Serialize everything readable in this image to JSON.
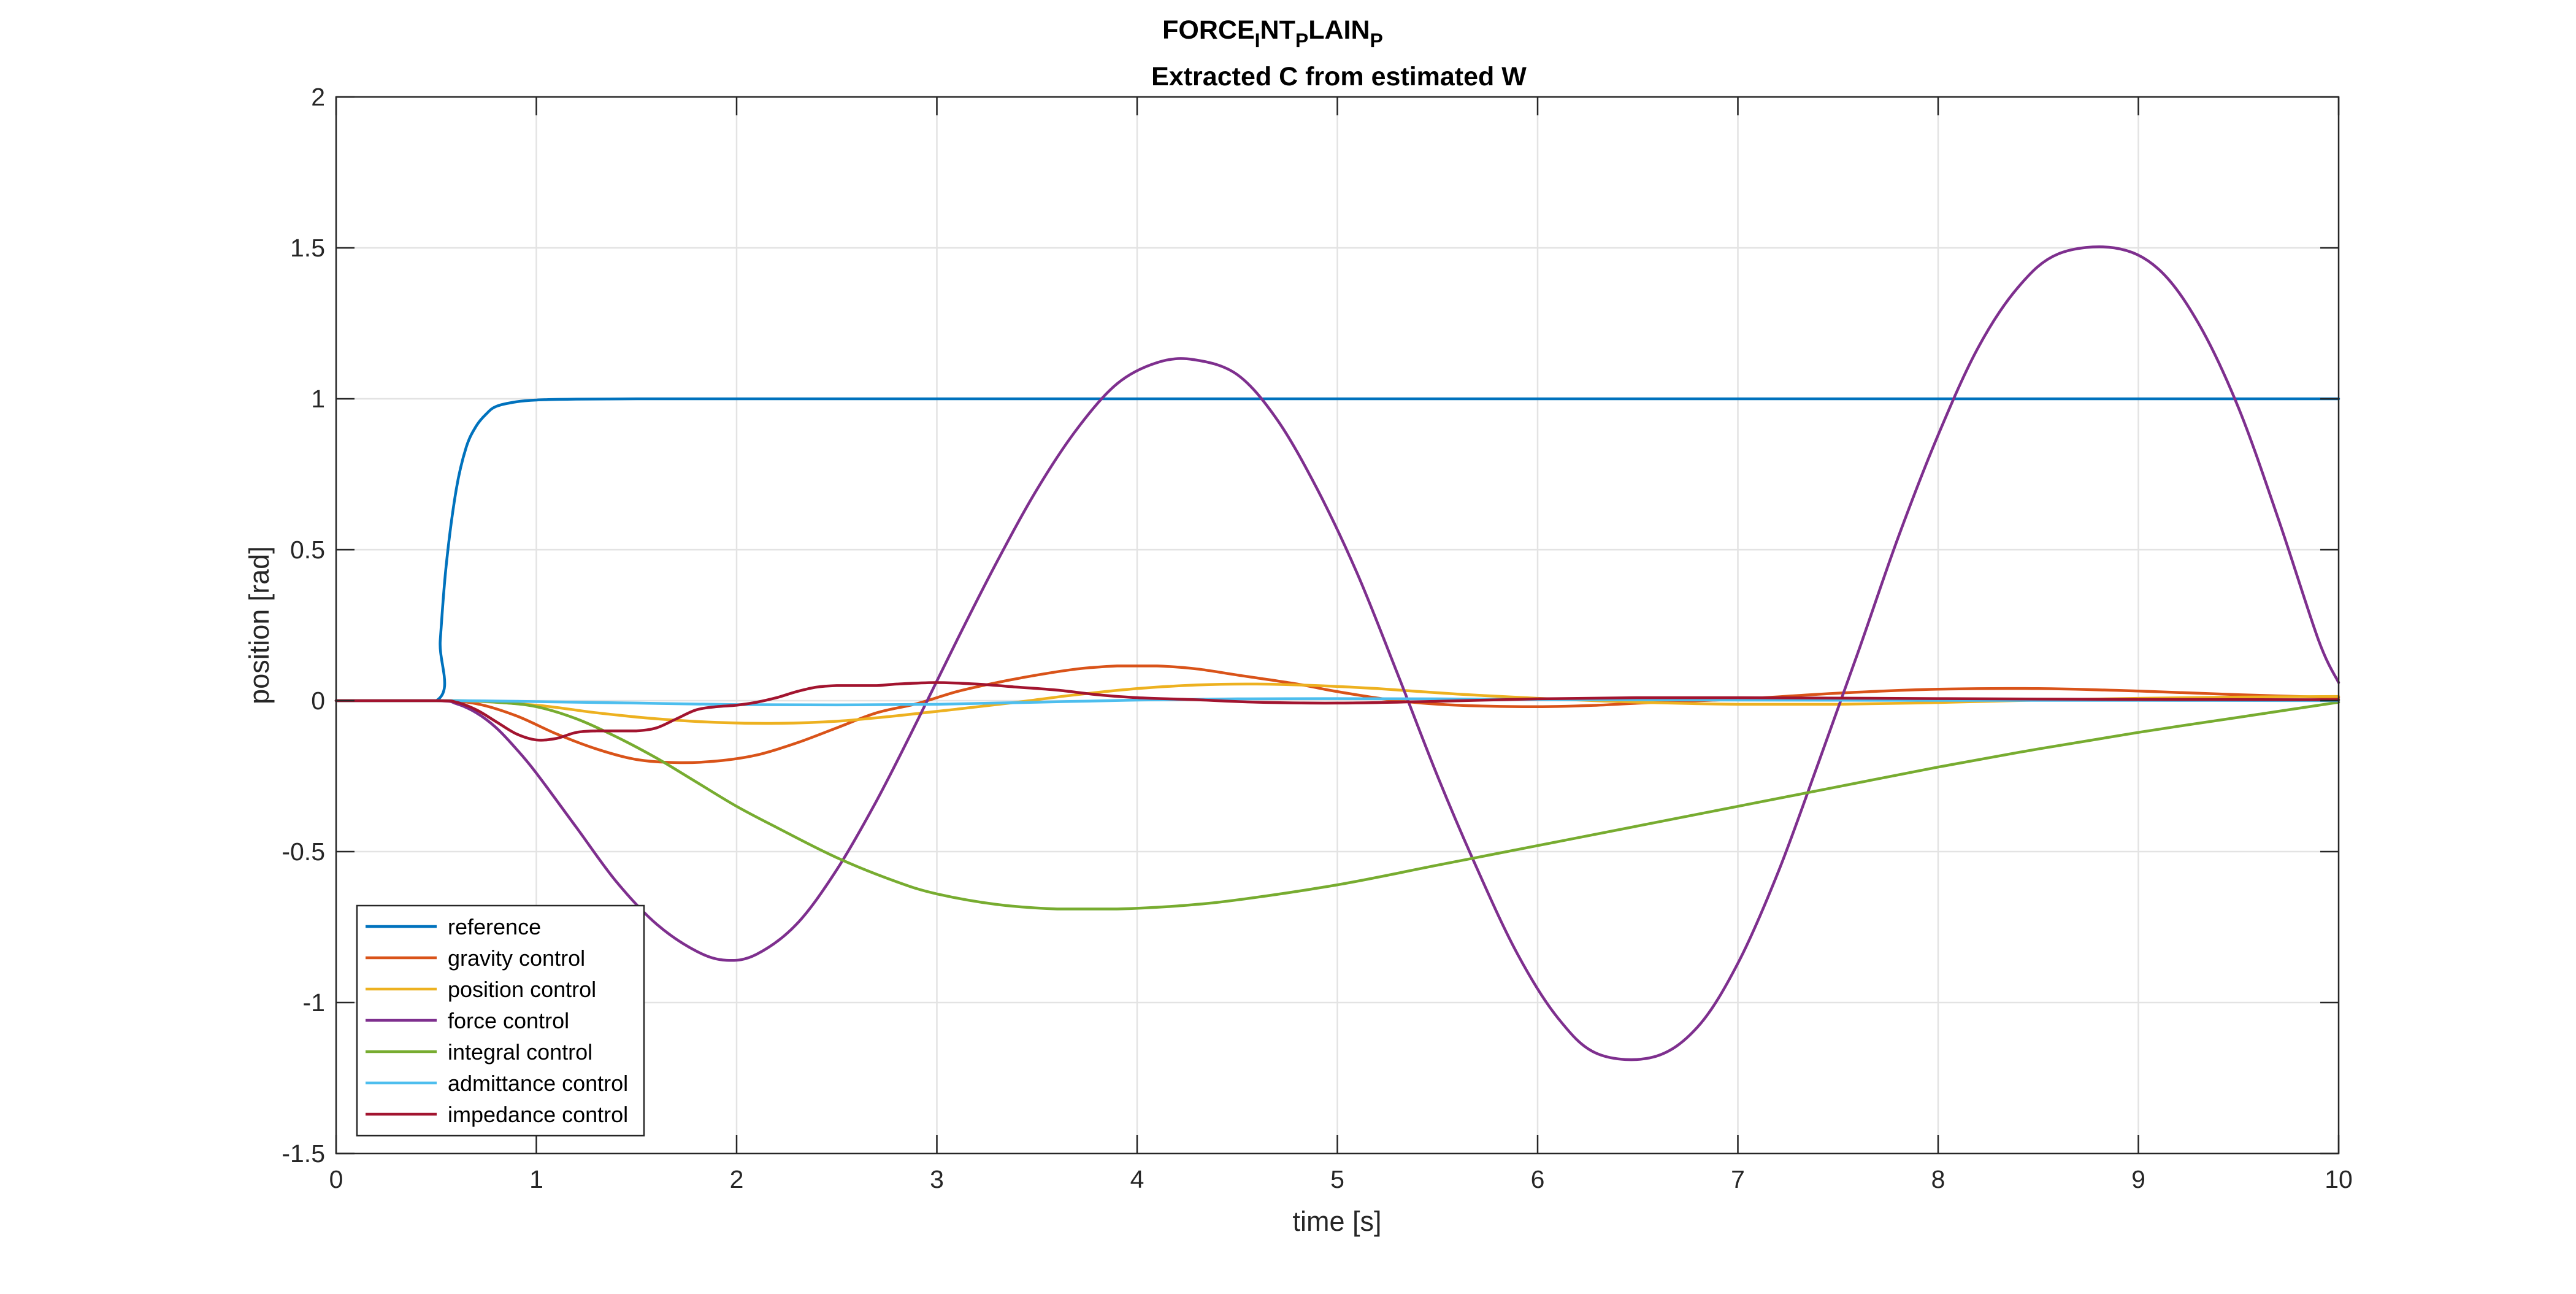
{
  "chart_data": {
    "type": "line",
    "title": {
      "part1": "FORCE",
      "sub1": "I",
      "part2": "NT",
      "sub2": "P",
      "part3": "LAIN",
      "sub3": "P"
    },
    "subtitle": "Extracted C from estimated W",
    "xlabel": "time [s]",
    "ylabel": "position [rad]",
    "xlim": [
      0,
      10
    ],
    "ylim": [
      -1.5,
      2
    ],
    "xticks": [
      0,
      1,
      2,
      3,
      4,
      5,
      6,
      7,
      8,
      9,
      10
    ],
    "xtick_labels": [
      "0",
      "1",
      "2",
      "3",
      "4",
      "5",
      "6",
      "7",
      "8",
      "9",
      "10"
    ],
    "yticks": [
      -1.5,
      -1,
      -0.5,
      0,
      0.5,
      1,
      1.5,
      2
    ],
    "ytick_labels": [
      "-1.5",
      "-1",
      "-0.5",
      "0",
      "0.5",
      "1",
      "1.5",
      "2"
    ],
    "grid": true,
    "legend_position": "bottom-left",
    "series": [
      {
        "name": "reference",
        "color": "#0072BD",
        "x": [
          0,
          0.5,
          0.52,
          0.55,
          0.6,
          0.65,
          0.7,
          0.75,
          0.8,
          0.9,
          1.0,
          1.2,
          1.5,
          2,
          3,
          4,
          5,
          6,
          7,
          8,
          9,
          10
        ],
        "y": [
          0,
          0,
          0.2,
          0.45,
          0.7,
          0.84,
          0.91,
          0.95,
          0.975,
          0.99,
          0.996,
          0.999,
          1,
          1,
          1,
          1,
          1,
          1,
          1,
          1,
          1,
          1
        ]
      },
      {
        "name": "gravity control",
        "color": "#D95319",
        "x": [
          0,
          0.5,
          0.7,
          0.9,
          1.1,
          1.3,
          1.5,
          1.7,
          1.9,
          2.1,
          2.3,
          2.5,
          2.7,
          2.9,
          3.1,
          3.3,
          3.5,
          3.7,
          3.9,
          4.1,
          4.3,
          4.5,
          4.8,
          5.0,
          5.3,
          5.6,
          6.0,
          6.3,
          6.6,
          7.0,
          7.5,
          8.0,
          8.5,
          9.0,
          9.5,
          10
        ],
        "y": [
          0,
          0,
          -0.01,
          -0.05,
          -0.11,
          -0.16,
          -0.195,
          -0.205,
          -0.2,
          -0.18,
          -0.14,
          -0.09,
          -0.04,
          -0.01,
          0.03,
          0.06,
          0.085,
          0.105,
          0.115,
          0.115,
          0.105,
          0.085,
          0.055,
          0.03,
          0.0,
          -0.015,
          -0.02,
          -0.015,
          -0.005,
          0.005,
          0.025,
          0.038,
          0.04,
          0.032,
          0.02,
          0.01
        ]
      },
      {
        "name": "position control",
        "color": "#EDB120",
        "x": [
          0,
          0.6,
          1.0,
          1.3,
          1.6,
          1.9,
          2.2,
          2.5,
          2.8,
          3.1,
          3.4,
          3.7,
          4.0,
          4.3,
          4.6,
          4.9,
          5.2,
          5.6,
          6.0,
          6.5,
          7.0,
          7.5,
          8.0,
          8.5,
          9.0,
          9.5,
          10
        ],
        "y": [
          0,
          0,
          -0.015,
          -0.04,
          -0.06,
          -0.072,
          -0.075,
          -0.068,
          -0.05,
          -0.028,
          -0.005,
          0.02,
          0.04,
          0.052,
          0.055,
          0.05,
          0.04,
          0.022,
          0.008,
          -0.005,
          -0.012,
          -0.012,
          -0.006,
          0.002,
          0.008,
          0.012,
          0.014
        ]
      },
      {
        "name": "force control",
        "color": "#7E2F8E",
        "x": [
          0,
          0.5,
          0.6,
          0.7,
          0.8,
          0.9,
          1.0,
          1.2,
          1.4,
          1.6,
          1.8,
          1.95,
          2.1,
          2.3,
          2.5,
          2.7,
          2.9,
          3.1,
          3.3,
          3.5,
          3.7,
          3.9,
          4.1,
          4.28,
          4.5,
          4.7,
          4.9,
          5.1,
          5.3,
          5.5,
          5.7,
          5.9,
          6.1,
          6.3,
          6.58,
          6.8,
          7.0,
          7.2,
          7.4,
          7.6,
          7.8,
          8.0,
          8.2,
          8.4,
          8.6,
          8.88,
          9.1,
          9.3,
          9.5,
          9.7,
          9.9,
          10
        ],
        "y": [
          0,
          0,
          -0.01,
          -0.04,
          -0.09,
          -0.16,
          -0.24,
          -0.42,
          -0.6,
          -0.74,
          -0.83,
          -0.86,
          -0.84,
          -0.74,
          -0.56,
          -0.33,
          -0.07,
          0.2,
          0.46,
          0.7,
          0.9,
          1.05,
          1.12,
          1.13,
          1.08,
          0.93,
          0.7,
          0.42,
          0.09,
          -0.25,
          -0.56,
          -0.84,
          -1.05,
          -1.17,
          -1.18,
          -1.08,
          -0.87,
          -0.57,
          -0.21,
          0.16,
          0.54,
          0.88,
          1.17,
          1.37,
          1.48,
          1.5,
          1.43,
          1.25,
          0.97,
          0.6,
          0.2,
          0.06
        ]
      },
      {
        "name": "integral control",
        "color": "#77AC30",
        "x": [
          0,
          0.6,
          0.8,
          1.0,
          1.2,
          1.4,
          1.6,
          1.8,
          2.0,
          2.2,
          2.5,
          2.8,
          3.0,
          3.3,
          3.6,
          3.9,
          4.2,
          4.5,
          5.0,
          5.5,
          6.0,
          6.5,
          7.0,
          7.5,
          8.0,
          8.5,
          9.0,
          9.5,
          10
        ],
        "y": [
          0,
          0,
          -0.005,
          -0.02,
          -0.06,
          -0.12,
          -0.19,
          -0.27,
          -0.35,
          -0.42,
          -0.52,
          -0.6,
          -0.64,
          -0.675,
          -0.69,
          -0.69,
          -0.68,
          -0.66,
          -0.61,
          -0.545,
          -0.48,
          -0.415,
          -0.35,
          -0.285,
          -0.22,
          -0.16,
          -0.105,
          -0.055,
          -0.005
        ]
      },
      {
        "name": "admittance control",
        "color": "#4DBEEE",
        "x": [
          0,
          0.6,
          1.0,
          1.5,
          2.0,
          2.5,
          3.0,
          3.5,
          4.0,
          4.5,
          5.0,
          5.5,
          6.0,
          7.0,
          8.0,
          9.0,
          10
        ],
        "y": [
          0,
          0,
          -0.003,
          -0.008,
          -0.013,
          -0.014,
          -0.012,
          -0.005,
          0.002,
          0.006,
          0.007,
          0.006,
          0.004,
          0.002,
          0.001,
          0.001,
          0.0
        ]
      },
      {
        "name": "impedance control",
        "color": "#A2142F",
        "x": [
          0,
          0.5,
          0.6,
          0.7,
          0.8,
          0.9,
          1.0,
          1.1,
          1.2,
          1.3,
          1.4,
          1.5,
          1.6,
          1.7,
          1.8,
          1.9,
          2.0,
          2.1,
          2.2,
          2.3,
          2.4,
          2.5,
          2.6,
          2.7,
          2.8,
          3.0,
          3.2,
          3.4,
          3.6,
          3.8,
          4.0,
          4.3,
          4.6,
          5.0,
          5.5,
          6.0,
          6.5,
          7.0,
          8.0,
          9.0,
          10
        ],
        "y": [
          0,
          0,
          -0.005,
          -0.03,
          -0.07,
          -0.11,
          -0.13,
          -0.125,
          -0.105,
          -0.1,
          -0.1,
          -0.1,
          -0.09,
          -0.06,
          -0.03,
          -0.02,
          -0.015,
          -0.005,
          0.01,
          0.03,
          0.045,
          0.05,
          0.05,
          0.05,
          0.055,
          0.06,
          0.055,
          0.045,
          0.035,
          0.02,
          0.01,
          0.003,
          -0.005,
          -0.008,
          -0.002,
          0.006,
          0.01,
          0.01,
          0.007,
          0.004,
          0.003
        ]
      }
    ]
  }
}
